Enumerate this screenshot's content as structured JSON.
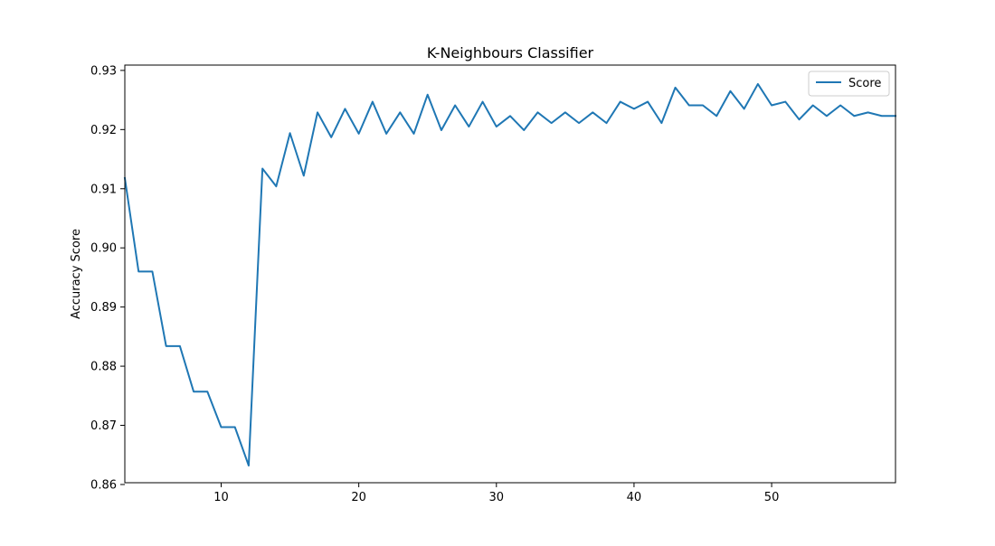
{
  "chart_data": {
    "type": "line",
    "title": "K-Neighbours Classifier",
    "xlabel": "",
    "ylabel": "Accuracy Score",
    "xlim": [
      3,
      59
    ],
    "ylim": [
      0.8603,
      0.9309
    ],
    "x_ticks": [
      10,
      20,
      30,
      40,
      50
    ],
    "y_ticks": [
      0.86,
      0.87,
      0.88,
      0.89,
      0.9,
      0.91,
      0.92,
      0.93
    ],
    "grid": false,
    "legend_position": "top-right",
    "series": [
      {
        "name": "Score",
        "color": "#1f77b4",
        "x": [
          3,
          4,
          5,
          6,
          7,
          8,
          9,
          10,
          11,
          12,
          13,
          14,
          15,
          16,
          17,
          18,
          19,
          20,
          21,
          22,
          23,
          24,
          25,
          26,
          27,
          28,
          29,
          30,
          31,
          32,
          33,
          34,
          35,
          36,
          37,
          38,
          39,
          40,
          41,
          42,
          43,
          44,
          45,
          46,
          47,
          48,
          49,
          50,
          51,
          52,
          53,
          54,
          55,
          56,
          57,
          58,
          59
        ],
        "values": [
          0.9118,
          0.896,
          0.896,
          0.8834,
          0.8834,
          0.8757,
          0.8757,
          0.8697,
          0.8697,
          0.8632,
          0.9134,
          0.9104,
          0.9194,
          0.9122,
          0.9229,
          0.9187,
          0.9235,
          0.9193,
          0.9247,
          0.9193,
          0.9229,
          0.9193,
          0.9259,
          0.9199,
          0.9241,
          0.9205,
          0.9247,
          0.9205,
          0.9223,
          0.9199,
          0.9229,
          0.9211,
          0.9229,
          0.9211,
          0.9229,
          0.9211,
          0.9247,
          0.9235,
          0.9247,
          0.9211,
          0.9271,
          0.9241,
          0.9241,
          0.9223,
          0.9265,
          0.9235,
          0.9277,
          0.9241,
          0.9247,
          0.9217,
          0.9241,
          0.9223,
          0.9241,
          0.9223,
          0.9229,
          0.9223,
          0.9223
        ]
      }
    ]
  }
}
